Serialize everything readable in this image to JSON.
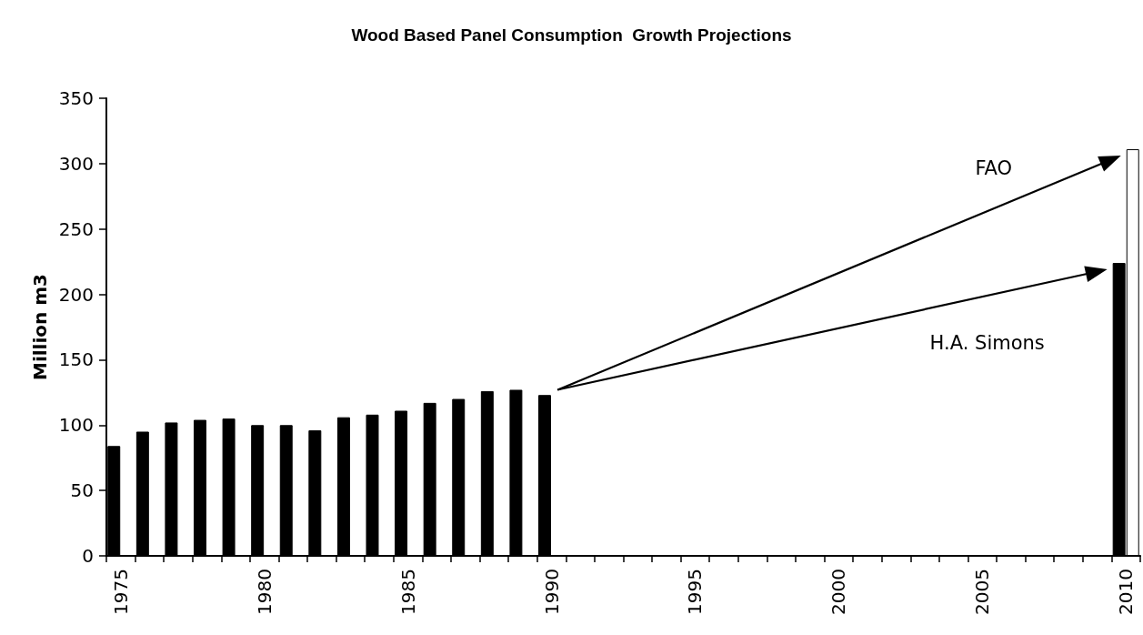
{
  "chart_data": {
    "type": "bar",
    "title": "Wood Based Panel Consumption  Growth Projections",
    "ylabel": "Million m3",
    "categories": [
      "1975",
      null,
      null,
      null,
      null,
      "1980",
      null,
      null,
      null,
      null,
      "1985",
      null,
      null,
      null,
      null,
      "1990",
      null,
      null,
      null,
      null,
      "1995",
      null,
      null,
      null,
      null,
      "2000",
      null,
      null,
      null,
      null,
      "2005",
      null,
      null,
      null,
      null,
      "2010"
    ],
    "series": [
      {
        "color": "#000000",
        "values": [
          84,
          95,
          102,
          104,
          105,
          100,
          100,
          96,
          106,
          108,
          111,
          117,
          120,
          126,
          127,
          123,
          null,
          null,
          null,
          null,
          null,
          null,
          null,
          null,
          null,
          null,
          null,
          null,
          null,
          null,
          null,
          null,
          null,
          null,
          null,
          224
        ]
      },
      {
        "color": "#ffffff",
        "values": [
          null,
          null,
          null,
          null,
          null,
          null,
          null,
          null,
          null,
          null,
          null,
          null,
          null,
          null,
          null,
          null,
          null,
          null,
          null,
          null,
          null,
          null,
          null,
          null,
          null,
          null,
          null,
          null,
          null,
          null,
          null,
          null,
          null,
          null,
          null,
          311
        ]
      }
    ],
    "ylim": [
      0,
      350
    ],
    "yticks": [
      0,
      50,
      100,
      150,
      200,
      250,
      300,
      350
    ],
    "annotations": [
      "FAO",
      "H.A. Simons"
    ]
  }
}
